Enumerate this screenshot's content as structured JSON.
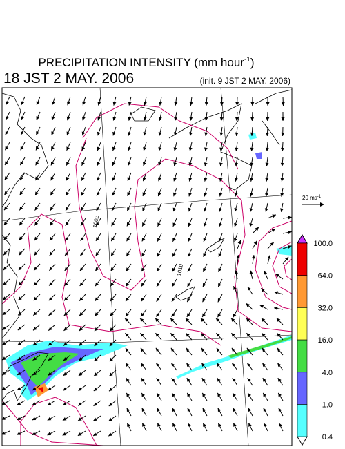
{
  "header": {
    "title": "PRECIPITATION INTENSITY (mm hour",
    "title_exponent": "-1",
    "title_close": ")",
    "valid_time": "18 JST 2 MAY. 2006",
    "init_time": "(init. 9 JST 2 MAY. 2006)"
  },
  "wind_scale": {
    "label": "20 ms",
    "exponent": "-1"
  },
  "colorbar": {
    "labels": [
      "100.0",
      "64.0",
      "32.0",
      "16.0",
      "4.0",
      "1.0",
      "0.4"
    ],
    "colors": [
      "#ee0000",
      "#ff9933",
      "#ffff55",
      "#44dd44",
      "#6666ff",
      "#55ffff"
    ],
    "over_color": "#cc33ff",
    "under_color": "#ffffff"
  },
  "map": {
    "contour_labels": [
      "1002",
      "1010"
    ]
  }
}
